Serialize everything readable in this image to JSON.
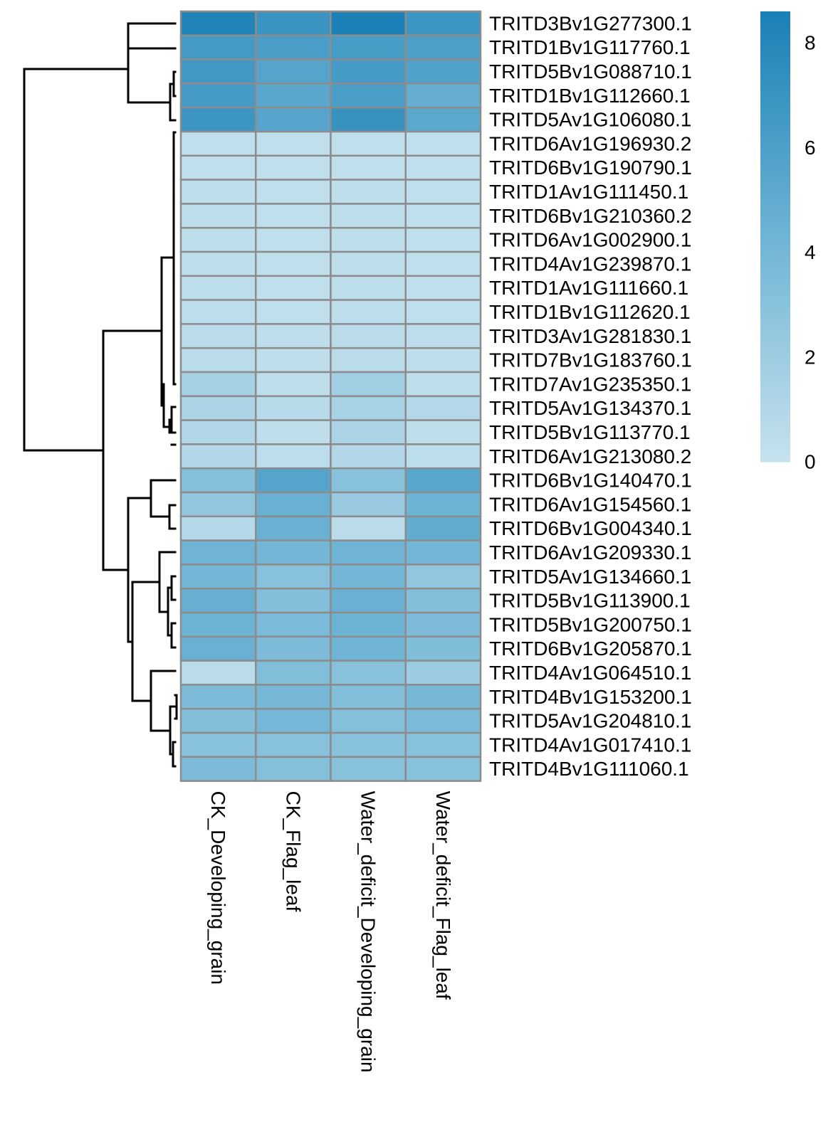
{
  "chart_data": {
    "type": "heatmap",
    "title": "",
    "xlabel": "",
    "ylabel": "",
    "columns": [
      "CK_Developing_grain",
      "CK_Flag_leaf",
      "Water_deficit_Developing_grain",
      "Water_deficit_Flag_leaf"
    ],
    "rows": [
      "TRITD3Bv1G277300.1",
      "TRITD1Bv1G117760.1",
      "TRITD5Bv1G088710.1",
      "TRITD1Bv1G112660.1",
      "TRITD5Av1G106080.1",
      "TRITD6Av1G196930.2",
      "TRITD6Bv1G190790.1",
      "TRITD1Av1G111450.1",
      "TRITD6Bv1G210360.2",
      "TRITD6Av1G002900.1",
      "TRITD4Av1G239870.1",
      "TRITD1Av1G111660.1",
      "TRITD1Bv1G112620.1",
      "TRITD3Av1G281830.1",
      "TRITD7Bv1G183760.1",
      "TRITD7Av1G235350.1",
      "TRITD5Av1G134370.1",
      "TRITD5Bv1G113770.1",
      "TRITD6Av1G213080.2",
      "TRITD6Bv1G140470.1",
      "TRITD6Av1G154560.1",
      "TRITD6Bv1G004340.1",
      "TRITD6Av1G209330.1",
      "TRITD5Av1G134660.1",
      "TRITD5Bv1G113900.1",
      "TRITD5Bv1G200750.1",
      "TRITD6Bv1G205870.1",
      "TRITD4Av1G064510.1",
      "TRITD4Bv1G153200.1",
      "TRITD5Av1G204810.1",
      "TRITD4Av1G017410.1",
      "TRITD4Bv1G111060.1"
    ],
    "values": [
      [
        8.3,
        7.0,
        8.5,
        6.9
      ],
      [
        6.5,
        6.2,
        6.3,
        6.0
      ],
      [
        6.6,
        5.6,
        6.4,
        5.8
      ],
      [
        6.4,
        5.4,
        6.2,
        4.8
      ],
      [
        6.9,
        5.5,
        7.1,
        5.3
      ],
      [
        0.3,
        0.3,
        0.3,
        0.3
      ],
      [
        0.3,
        0.3,
        0.3,
        0.3
      ],
      [
        0.4,
        0.3,
        0.4,
        0.3
      ],
      [
        0.4,
        0.3,
        0.4,
        0.3
      ],
      [
        0.4,
        0.3,
        0.4,
        0.3
      ],
      [
        0.4,
        0.3,
        0.4,
        0.3
      ],
      [
        0.5,
        0.3,
        0.5,
        0.3
      ],
      [
        0.5,
        0.3,
        0.5,
        0.3
      ],
      [
        0.6,
        0.4,
        0.6,
        0.4
      ],
      [
        0.6,
        0.4,
        0.6,
        0.4
      ],
      [
        1.6,
        0.4,
        1.9,
        0.4
      ],
      [
        1.3,
        0.7,
        1.5,
        0.9
      ],
      [
        1.1,
        0.4,
        1.3,
        0.4
      ],
      [
        1.0,
        0.5,
        1.0,
        0.5
      ],
      [
        3.2,
        5.6,
        3.0,
        5.4
      ],
      [
        2.6,
        4.6,
        2.2,
        4.4
      ],
      [
        0.8,
        4.6,
        0.6,
        5.0
      ],
      [
        4.3,
        4.1,
        4.3,
        4.1
      ],
      [
        4.1,
        3.1,
        4.1,
        2.6
      ],
      [
        4.7,
        3.3,
        4.6,
        3.3
      ],
      [
        4.4,
        3.7,
        4.4,
        3.6
      ],
      [
        4.6,
        3.6,
        4.3,
        3.5
      ],
      [
        0.6,
        3.4,
        3.1,
        2.1
      ],
      [
        3.6,
        3.9,
        3.3,
        3.9
      ],
      [
        3.3,
        4.0,
        3.2,
        3.7
      ],
      [
        3.0,
        3.1,
        3.0,
        3.1
      ],
      [
        3.6,
        3.2,
        3.1,
        3.1
      ]
    ],
    "colorbar": {
      "min": 0,
      "max": 8.6,
      "ticks": [
        0,
        2,
        4,
        6,
        8
      ],
      "low_color": "#C6E2EE",
      "mid_color": "#6FB4D4",
      "high_color": "#1A80B6"
    },
    "grid_color": "#8C8C8C",
    "row_dendrogram": true,
    "legend_position": "right"
  }
}
